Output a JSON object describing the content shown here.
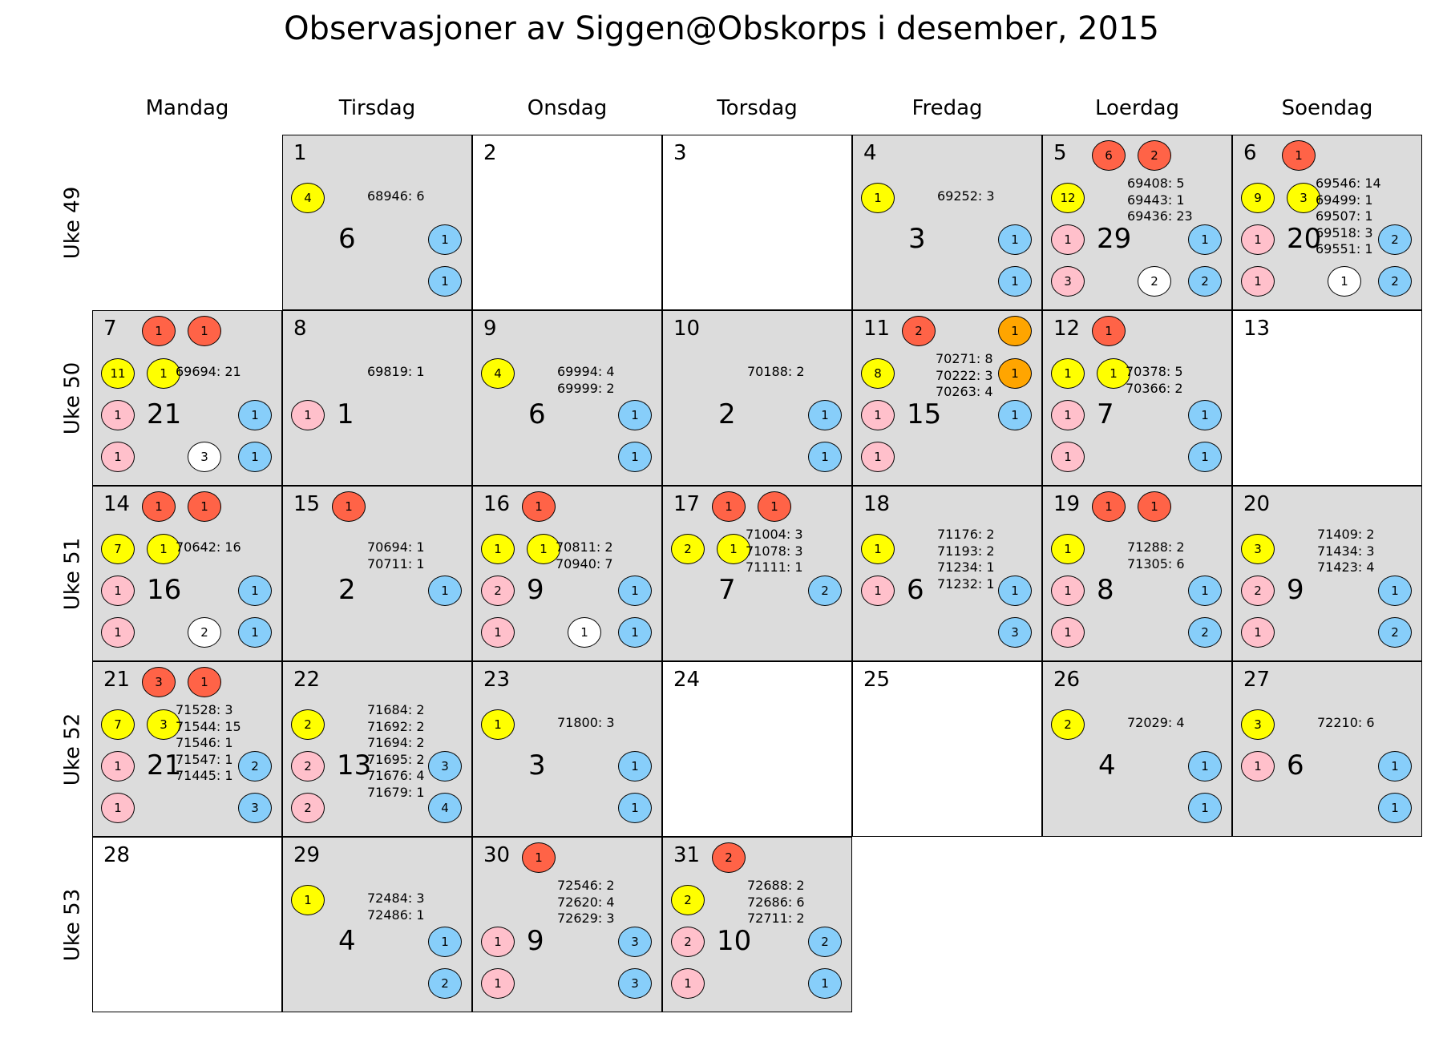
{
  "chart_data": {
    "type": "table",
    "title": "Observasjoner av Siggen@Obskorps i desember, 2015",
    "day_headers": [
      "Mandag",
      "Tirsdag",
      "Onsdag",
      "Torsdag",
      "Fredag",
      "Loerdag",
      "Soendag"
    ],
    "week_labels": [
      "Uke 49",
      "Uke 50",
      "Uke 51",
      "Uke 52",
      "Uke 53"
    ],
    "colors": {
      "red": "#ff6347",
      "orange": "#ffa500",
      "yellow": "#ffff00",
      "pink": "#ffc0cb",
      "white": "#ffffff",
      "blue": "#87cefa",
      "shaded": "#dcdcdc"
    },
    "days": [
      {
        "day": "1",
        "week": 0,
        "weekday": 1,
        "total": "6",
        "shaded": true,
        "red": [],
        "orange": [],
        "yellow": [
          "4"
        ],
        "pink": [],
        "white": [],
        "blue": [
          "1",
          "1"
        ],
        "notes": [
          "68946: 6"
        ]
      },
      {
        "day": "2",
        "week": 0,
        "weekday": 2,
        "total": "",
        "shaded": false,
        "red": [],
        "orange": [],
        "yellow": [],
        "pink": [],
        "white": [],
        "blue": [],
        "notes": []
      },
      {
        "day": "3",
        "week": 0,
        "weekday": 3,
        "total": "",
        "shaded": false,
        "red": [],
        "orange": [],
        "yellow": [],
        "pink": [],
        "white": [],
        "blue": [],
        "notes": []
      },
      {
        "day": "4",
        "week": 0,
        "weekday": 4,
        "total": "3",
        "shaded": true,
        "red": [],
        "orange": [],
        "yellow": [
          "1"
        ],
        "pink": [],
        "white": [],
        "blue": [
          "1",
          "1"
        ],
        "notes": [
          "69252: 3"
        ]
      },
      {
        "day": "5",
        "week": 0,
        "weekday": 5,
        "total": "29",
        "shaded": true,
        "red": [
          "6",
          "2"
        ],
        "orange": [],
        "yellow": [
          "12"
        ],
        "pink": [
          "1",
          "3"
        ],
        "white": [
          "2"
        ],
        "blue": [
          "1",
          "2"
        ],
        "notes": [
          "69408: 5",
          "69443: 1",
          "69436: 23"
        ]
      },
      {
        "day": "6",
        "week": 0,
        "weekday": 6,
        "total": "20",
        "shaded": true,
        "red": [
          "1"
        ],
        "orange": [],
        "yellow": [
          "9",
          "3"
        ],
        "pink": [
          "1",
          "1"
        ],
        "white": [
          "1"
        ],
        "blue": [
          "2",
          "2"
        ],
        "notes": [
          "69546: 14",
          "69499: 1",
          "69507: 1",
          "69518: 3",
          "69551: 1"
        ]
      },
      {
        "day": "7",
        "week": 1,
        "weekday": 0,
        "total": "21",
        "shaded": true,
        "red": [
          "1",
          "1"
        ],
        "orange": [],
        "yellow": [
          "11",
          "1"
        ],
        "pink": [
          "1",
          "1"
        ],
        "white": [
          "3"
        ],
        "blue": [
          "1",
          "1"
        ],
        "notes": [
          "69694: 21"
        ]
      },
      {
        "day": "8",
        "week": 1,
        "weekday": 1,
        "total": "1",
        "shaded": true,
        "red": [],
        "orange": [],
        "yellow": [],
        "pink": [
          "1"
        ],
        "white": [],
        "blue": [],
        "notes": [
          "69819: 1"
        ]
      },
      {
        "day": "9",
        "week": 1,
        "weekday": 2,
        "total": "6",
        "shaded": true,
        "red": [],
        "orange": [],
        "yellow": [
          "4"
        ],
        "pink": [],
        "white": [],
        "blue": [
          "1",
          "1"
        ],
        "notes": [
          "69994: 4",
          "69999: 2"
        ]
      },
      {
        "day": "10",
        "week": 1,
        "weekday": 3,
        "total": "2",
        "shaded": true,
        "red": [],
        "orange": [],
        "yellow": [],
        "pink": [],
        "white": [],
        "blue": [
          "1",
          "1"
        ],
        "notes": [
          "70188: 2"
        ]
      },
      {
        "day": "11",
        "week": 1,
        "weekday": 4,
        "total": "15",
        "shaded": true,
        "red": [
          "2"
        ],
        "orange": [
          "1",
          "1"
        ],
        "yellow": [
          "8"
        ],
        "pink": [
          "1",
          "1"
        ],
        "white": [],
        "blue": [
          "1"
        ],
        "notes": [
          "70271: 8",
          "70222: 3",
          "70263: 4"
        ]
      },
      {
        "day": "12",
        "week": 1,
        "weekday": 5,
        "total": "7",
        "shaded": true,
        "red": [
          "1"
        ],
        "orange": [],
        "yellow": [
          "1",
          "1"
        ],
        "pink": [
          "1",
          "1"
        ],
        "white": [],
        "blue": [
          "1",
          "1"
        ],
        "notes": [
          "70378: 5",
          "70366: 2"
        ]
      },
      {
        "day": "13",
        "week": 1,
        "weekday": 6,
        "total": "",
        "shaded": false,
        "red": [],
        "orange": [],
        "yellow": [],
        "pink": [],
        "white": [],
        "blue": [],
        "notes": []
      },
      {
        "day": "14",
        "week": 2,
        "weekday": 0,
        "total": "16",
        "shaded": true,
        "red": [
          "1",
          "1"
        ],
        "orange": [],
        "yellow": [
          "7",
          "1"
        ],
        "pink": [
          "1",
          "1"
        ],
        "white": [
          "2"
        ],
        "blue": [
          "1",
          "1"
        ],
        "notes": [
          "70642: 16"
        ]
      },
      {
        "day": "15",
        "week": 2,
        "weekday": 1,
        "total": "2",
        "shaded": true,
        "red": [
          "1"
        ],
        "orange": [],
        "yellow": [],
        "pink": [],
        "white": [],
        "blue": [
          "1"
        ],
        "notes": [
          "70694: 1",
          "70711: 1"
        ]
      },
      {
        "day": "16",
        "week": 2,
        "weekday": 2,
        "total": "9",
        "shaded": true,
        "red": [
          "1"
        ],
        "orange": [],
        "yellow": [
          "1",
          "1"
        ],
        "pink": [
          "2",
          "1"
        ],
        "white": [
          "1"
        ],
        "blue": [
          "1",
          "1"
        ],
        "notes": [
          "70811: 2",
          "70940: 7"
        ]
      },
      {
        "day": "17",
        "week": 2,
        "weekday": 3,
        "total": "7",
        "shaded": true,
        "red": [
          "1",
          "1"
        ],
        "orange": [],
        "yellow": [
          "2",
          "1"
        ],
        "pink": [],
        "white": [],
        "blue": [
          "2"
        ],
        "notes": [
          "71004: 3",
          "71078: 3",
          "71111: 1"
        ]
      },
      {
        "day": "18",
        "week": 2,
        "weekday": 4,
        "total": "6",
        "shaded": true,
        "red": [],
        "orange": [],
        "yellow": [
          "1"
        ],
        "pink": [
          "1"
        ],
        "white": [],
        "blue": [
          "1",
          "3"
        ],
        "notes": [
          "71176: 2",
          "71193: 2",
          "71234: 1",
          "71232: 1"
        ]
      },
      {
        "day": "19",
        "week": 2,
        "weekday": 5,
        "total": "8",
        "shaded": true,
        "red": [
          "1",
          "1"
        ],
        "orange": [],
        "yellow": [
          "1"
        ],
        "pink": [
          "1",
          "1"
        ],
        "white": [],
        "blue": [
          "1",
          "2"
        ],
        "notes": [
          "71288: 2",
          "71305: 6"
        ]
      },
      {
        "day": "20",
        "week": 2,
        "weekday": 6,
        "total": "9",
        "shaded": true,
        "red": [],
        "orange": [],
        "yellow": [
          "3"
        ],
        "pink": [
          "2",
          "1"
        ],
        "white": [],
        "blue": [
          "1",
          "2"
        ],
        "notes": [
          "71409: 2",
          "71434: 3",
          "71423: 4"
        ]
      },
      {
        "day": "21",
        "week": 3,
        "weekday": 0,
        "total": "21",
        "shaded": true,
        "red": [
          "3",
          "1"
        ],
        "orange": [],
        "yellow": [
          "7",
          "3"
        ],
        "pink": [
          "1",
          "1"
        ],
        "white": [],
        "blue": [
          "2",
          "3"
        ],
        "notes": [
          "71528: 3",
          "71544: 15",
          "71546: 1",
          "71547: 1",
          "71445: 1"
        ]
      },
      {
        "day": "22",
        "week": 3,
        "weekday": 1,
        "total": "13",
        "shaded": true,
        "red": [],
        "orange": [],
        "yellow": [
          "2"
        ],
        "pink": [
          "2",
          "2"
        ],
        "white": [],
        "blue": [
          "3",
          "4"
        ],
        "notes": [
          "71684: 2",
          "71692: 2",
          "71694: 2",
          "71695: 2",
          "71676: 4",
          "71679: 1"
        ]
      },
      {
        "day": "23",
        "week": 3,
        "weekday": 2,
        "total": "3",
        "shaded": true,
        "red": [],
        "orange": [],
        "yellow": [
          "1"
        ],
        "pink": [],
        "white": [],
        "blue": [
          "1",
          "1"
        ],
        "notes": [
          "71800: 3"
        ]
      },
      {
        "day": "24",
        "week": 3,
        "weekday": 3,
        "total": "",
        "shaded": false,
        "red": [],
        "orange": [],
        "yellow": [],
        "pink": [],
        "white": [],
        "blue": [],
        "notes": []
      },
      {
        "day": "25",
        "week": 3,
        "weekday": 4,
        "total": "",
        "shaded": false,
        "red": [],
        "orange": [],
        "yellow": [],
        "pink": [],
        "white": [],
        "blue": [],
        "notes": []
      },
      {
        "day": "26",
        "week": 3,
        "weekday": 5,
        "total": "4",
        "shaded": true,
        "red": [],
        "orange": [],
        "yellow": [
          "2"
        ],
        "pink": [],
        "white": [],
        "blue": [
          "1",
          "1"
        ],
        "notes": [
          "72029: 4"
        ]
      },
      {
        "day": "27",
        "week": 3,
        "weekday": 6,
        "total": "6",
        "shaded": true,
        "red": [],
        "orange": [],
        "yellow": [
          "3"
        ],
        "pink": [
          "1"
        ],
        "white": [],
        "blue": [
          "1",
          "1"
        ],
        "notes": [
          "72210: 6"
        ]
      },
      {
        "day": "28",
        "week": 4,
        "weekday": 0,
        "total": "",
        "shaded": false,
        "red": [],
        "orange": [],
        "yellow": [],
        "pink": [],
        "white": [],
        "blue": [],
        "notes": []
      },
      {
        "day": "29",
        "week": 4,
        "weekday": 1,
        "total": "4",
        "shaded": true,
        "red": [],
        "orange": [],
        "yellow": [
          "1"
        ],
        "pink": [],
        "white": [],
        "blue": [
          "1",
          "2"
        ],
        "notes": [
          "72484: 3",
          "72486: 1"
        ]
      },
      {
        "day": "30",
        "week": 4,
        "weekday": 2,
        "total": "9",
        "shaded": true,
        "red": [
          "1"
        ],
        "orange": [],
        "yellow": [],
        "pink": [
          "1",
          "1"
        ],
        "white": [],
        "blue": [
          "3",
          "3"
        ],
        "notes": [
          "72546: 2",
          "72620: 4",
          "72629: 3"
        ]
      },
      {
        "day": "31",
        "week": 4,
        "weekday": 3,
        "total": "10",
        "shaded": true,
        "red": [
          "2"
        ],
        "orange": [],
        "yellow": [
          "2"
        ],
        "pink": [
          "2",
          "1"
        ],
        "white": [],
        "blue": [
          "2",
          "1"
        ],
        "notes": [
          "72688: 2",
          "72686: 6",
          "72711: 2"
        ]
      }
    ]
  }
}
